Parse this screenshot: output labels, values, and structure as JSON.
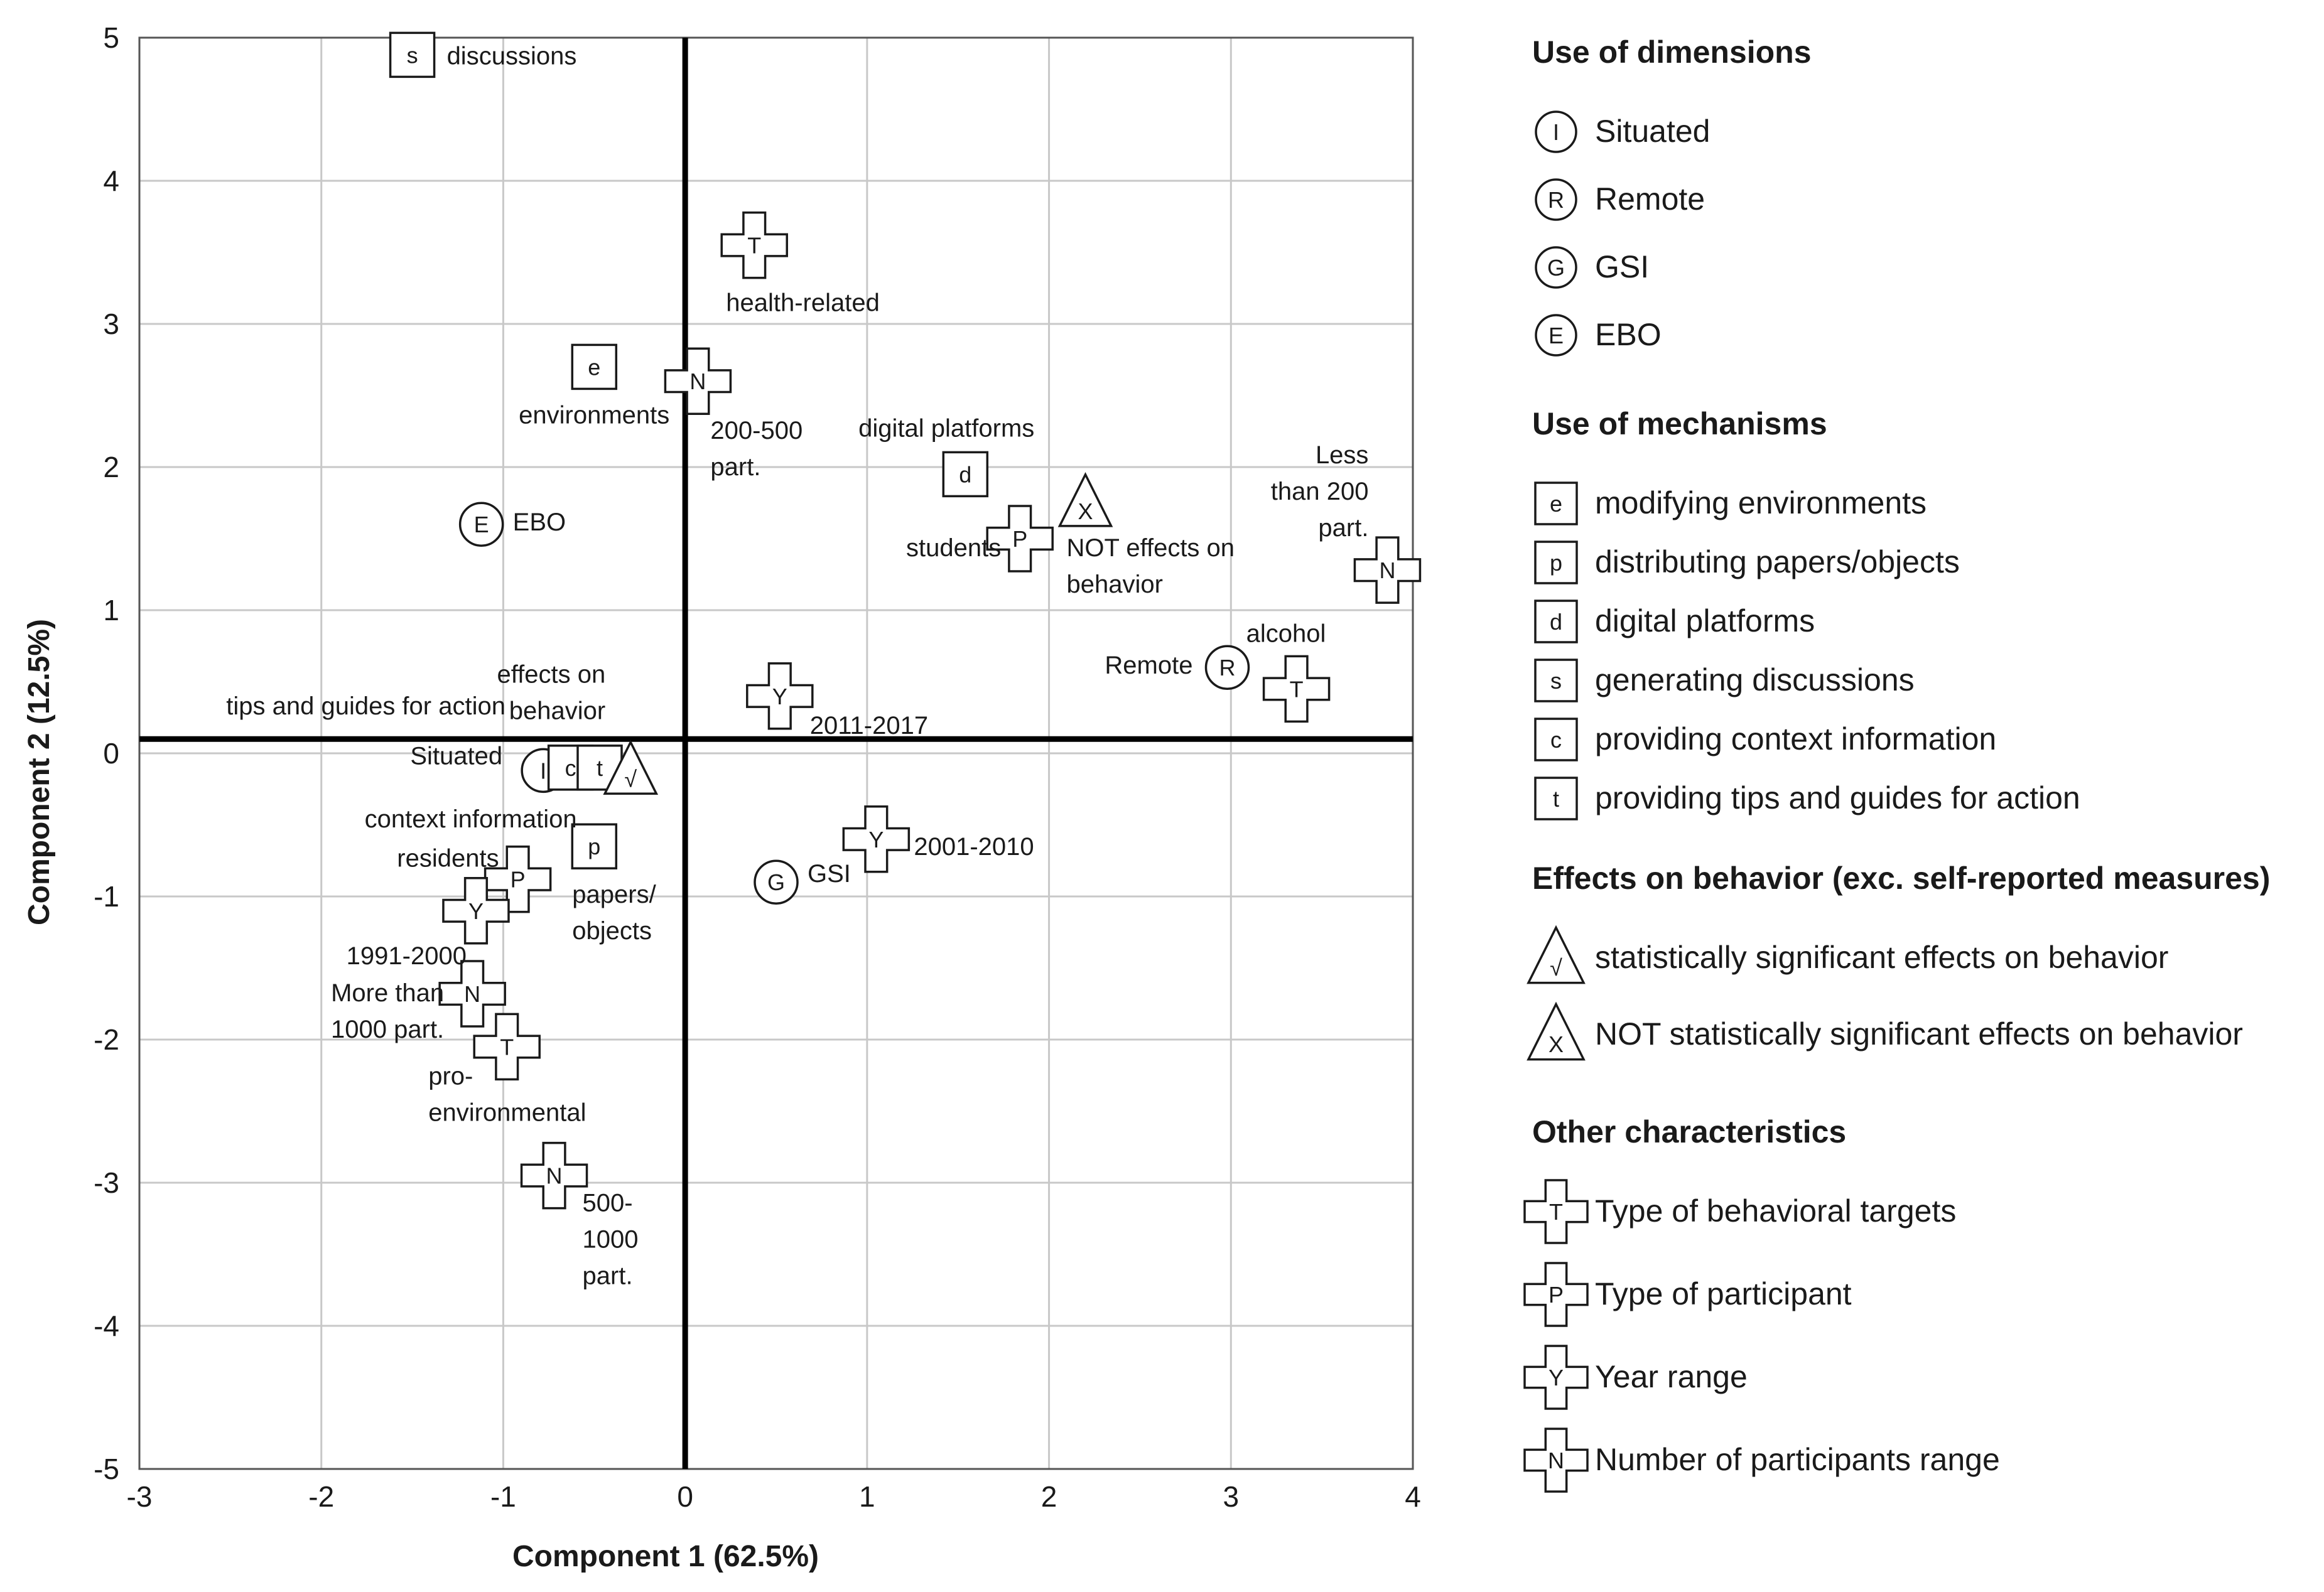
{
  "chart_data": {
    "type": "scatter",
    "title": "",
    "xlabel": "Component 1 (62.5%)",
    "ylabel": "Component 2 (12.5%)",
    "xlim": [
      -3,
      4
    ],
    "ylim": [
      -5,
      5
    ],
    "xticks": [
      "-3",
      "-2",
      "-1",
      "0",
      "1",
      "2",
      "3",
      "4"
    ],
    "yticks": [
      "5",
      "4",
      "3",
      "2",
      "1",
      "0",
      "-1",
      "-2",
      "-3",
      "-4",
      "-5"
    ],
    "grid": true,
    "zero_lines": {
      "x": 0,
      "y": 0.1
    },
    "points": [
      {
        "id": "situated",
        "group": "dimension",
        "letter": "I",
        "x": -0.78,
        "y": -0.12,
        "label": [
          "Situated"
        ]
      },
      {
        "id": "remote",
        "group": "dimension",
        "letter": "R",
        "x": 2.98,
        "y": 0.6,
        "label": [
          "Remote"
        ]
      },
      {
        "id": "gsi",
        "group": "dimension",
        "letter": "G",
        "x": 0.5,
        "y": -0.9,
        "label": [
          "GSI"
        ]
      },
      {
        "id": "ebo",
        "group": "dimension",
        "letter": "E",
        "x": -1.12,
        "y": 1.6,
        "label": [
          "EBO"
        ]
      },
      {
        "id": "m-environments",
        "group": "mechanism",
        "letter": "e",
        "x": -0.5,
        "y": 2.7,
        "label": [
          "environments"
        ]
      },
      {
        "id": "m-papers",
        "group": "mechanism",
        "letter": "p",
        "x": -0.5,
        "y": -0.65,
        "label": [
          "papers/",
          "objects"
        ]
      },
      {
        "id": "m-digital",
        "group": "mechanism",
        "letter": "d",
        "x": 1.54,
        "y": 1.95,
        "label": [
          "digital platforms"
        ]
      },
      {
        "id": "m-discussions",
        "group": "mechanism",
        "letter": "s",
        "x": -1.5,
        "y": 4.88,
        "label": [
          "discussions"
        ]
      },
      {
        "id": "m-context",
        "group": "mechanism",
        "letter": "c",
        "x": -0.63,
        "y": -0.1,
        "label": [
          "context information"
        ]
      },
      {
        "id": "m-tips",
        "group": "mechanism",
        "letter": "t",
        "x": -0.47,
        "y": -0.1,
        "label": [
          "tips and guides for action"
        ]
      },
      {
        "id": "e-sig",
        "group": "effect",
        "letter": "√",
        "x": -0.3,
        "y": -0.12,
        "label": [
          "effects on",
          "behavior"
        ]
      },
      {
        "id": "e-notsig",
        "group": "effect",
        "letter": "X",
        "x": 2.2,
        "y": 1.75,
        "label": [
          "NOT effects on",
          "behavior"
        ]
      },
      {
        "id": "t-health",
        "group": "target",
        "letter": "T",
        "x": 0.38,
        "y": 3.55,
        "label": [
          "health-related"
        ]
      },
      {
        "id": "t-alcohol",
        "group": "target",
        "letter": "T",
        "x": 3.36,
        "y": 0.45,
        "label": [
          "alcohol"
        ]
      },
      {
        "id": "t-proenv",
        "group": "target",
        "letter": "T",
        "x": -0.98,
        "y": -2.05,
        "label": [
          "pro-",
          "environmental"
        ]
      },
      {
        "id": "p-students",
        "group": "participant",
        "letter": "P",
        "x": 1.84,
        "y": 1.5,
        "label": [
          "students"
        ]
      },
      {
        "id": "p-residents",
        "group": "participant",
        "letter": "P",
        "x": -0.92,
        "y": -0.88,
        "label": [
          "residents"
        ]
      },
      {
        "id": "y-2011",
        "group": "year",
        "letter": "Y",
        "x": 0.52,
        "y": 0.4,
        "label": [
          "2011-2017"
        ]
      },
      {
        "id": "y-2001",
        "group": "year",
        "letter": "Y",
        "x": 1.05,
        "y": -0.6,
        "label": [
          "2001-2010"
        ]
      },
      {
        "id": "y-1991",
        "group": "year",
        "letter": "Y",
        "x": -1.15,
        "y": -1.1,
        "label": [
          "1991-2000"
        ]
      },
      {
        "id": "n-200-500",
        "group": "participants_range",
        "letter": "N",
        "x": 0.07,
        "y": 2.6,
        "label": [
          "200-500",
          "part."
        ]
      },
      {
        "id": "n-less200",
        "group": "participants_range",
        "letter": "N",
        "x": 3.86,
        "y": 1.28,
        "label": [
          "Less",
          "than 200",
          "part."
        ]
      },
      {
        "id": "n-more1000",
        "group": "participants_range",
        "letter": "N",
        "x": -1.17,
        "y": -1.68,
        "label": [
          "More than",
          "1000 part."
        ]
      },
      {
        "id": "n-500-1000",
        "group": "participants_range",
        "letter": "N",
        "x": -0.72,
        "y": -2.95,
        "label": [
          "500-",
          "1000",
          "part."
        ]
      }
    ],
    "legend": {
      "position": "right",
      "sections": [
        {
          "title": "Use of dimensions",
          "marker": "circle",
          "items": [
            {
              "letter": "I",
              "text": "Situated"
            },
            {
              "letter": "R",
              "text": "Remote"
            },
            {
              "letter": "G",
              "text": "GSI"
            },
            {
              "letter": "E",
              "text": "EBO"
            }
          ]
        },
        {
          "title": "Use of mechanisms",
          "marker": "square",
          "items": [
            {
              "letter": "e",
              "text": "modifying environments"
            },
            {
              "letter": "p",
              "text": "distributing papers/objects"
            },
            {
              "letter": "d",
              "text": "digital platforms"
            },
            {
              "letter": "s",
              "text": "generating discussions"
            },
            {
              "letter": "c",
              "text": "providing context information"
            },
            {
              "letter": "t",
              "text": "providing tips and guides for action"
            }
          ]
        },
        {
          "title": "Effects on behavior (exc. self-reported measures)",
          "marker": "triangle",
          "items": [
            {
              "letter": "√",
              "text": "statistically significant effects on behavior"
            },
            {
              "letter": "X",
              "text": "NOT statistically significant effects on behavior"
            }
          ]
        },
        {
          "title": "Other characteristics",
          "marker": "cross",
          "items": [
            {
              "letter": "T",
              "text": "Type of behavioral targets"
            },
            {
              "letter": "P",
              "text": "Type of participant"
            },
            {
              "letter": "Y",
              "text": "Year range"
            },
            {
              "letter": "N",
              "text": "Number of participants range"
            }
          ]
        }
      ]
    }
  }
}
